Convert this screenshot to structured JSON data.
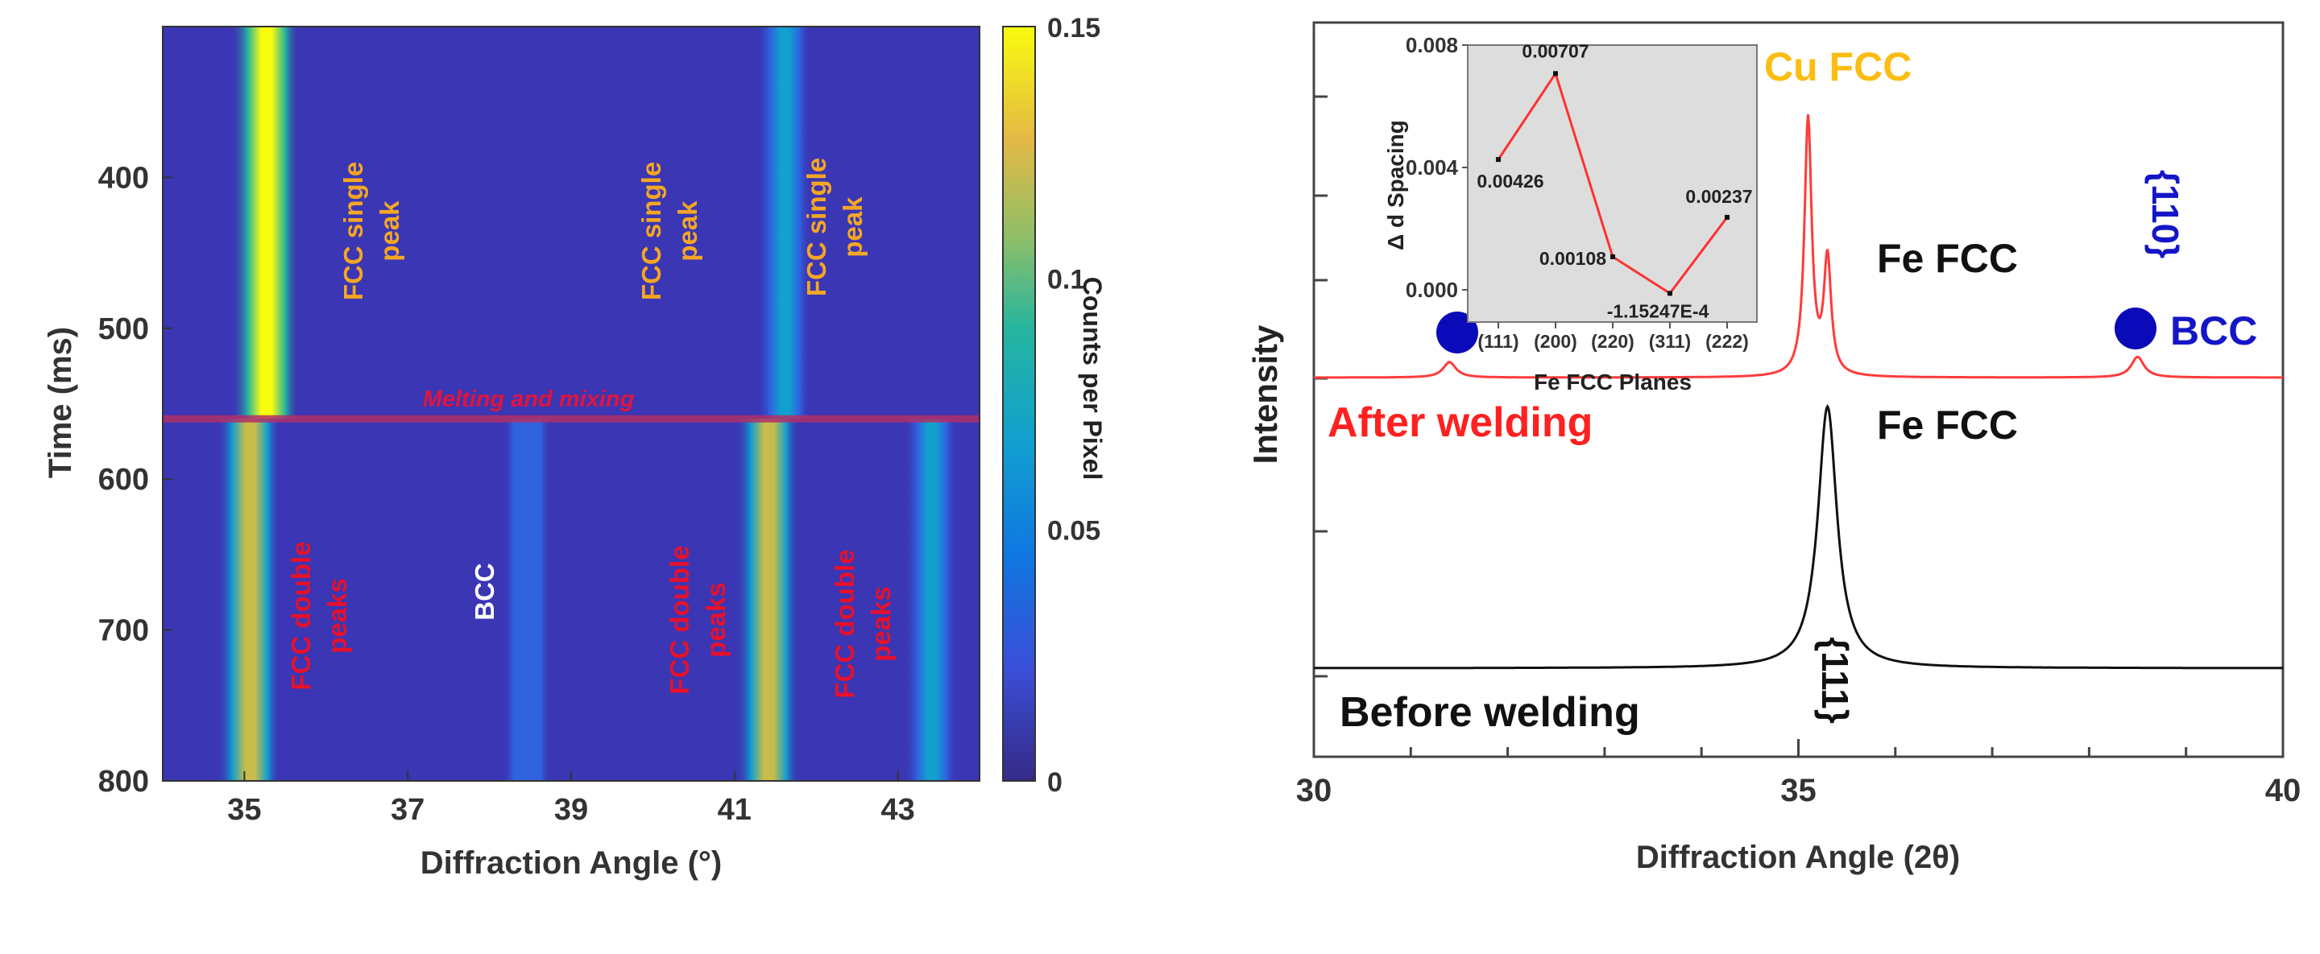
{
  "chart_data": [
    {
      "type": "heatmap",
      "xlabel": "Diffraction Angle (°)",
      "ylabel": "Time (ms)",
      "xlim": [
        34,
        44
      ],
      "ylim": [
        300,
        800
      ],
      "xticks": [
        "35",
        "37",
        "39",
        "41",
        "43"
      ],
      "yticks": [
        "400",
        "500",
        "600",
        "700",
        "800"
      ],
      "colorbar": {
        "label": "Counts per Pixel",
        "ticks": [
          "0.15",
          "0.1",
          "0.05",
          "0"
        ],
        "range": [
          0,
          0.15
        ]
      },
      "peaks": [
        {
          "angle": 35.25,
          "t0": 300,
          "t1": 560,
          "intensity": 0.15
        },
        {
          "angle": 35.05,
          "t0": 560,
          "t1": 800,
          "intensity": 0.12
        },
        {
          "angle": 41.6,
          "t0": 300,
          "t1": 560,
          "intensity": 0.06
        },
        {
          "angle": 41.4,
          "t0": 560,
          "t1": 800,
          "intensity": 0.12
        },
        {
          "angle": 43.4,
          "t0": 560,
          "t1": 800,
          "intensity": 0.06
        },
        {
          "angle": 38.45,
          "t0": 560,
          "t1": 800,
          "intensity": 0.03
        }
      ],
      "melt_line_time": 560,
      "annotations": {
        "melting": "Melting and mixing",
        "fcc_single_1": [
          "FCC single",
          "peak"
        ],
        "fcc_single_2": [
          "FCC single",
          "peak"
        ],
        "fcc_single_3": [
          "FCC single",
          "peak"
        ],
        "fcc_double_1": [
          "FCC double",
          "peaks"
        ],
        "fcc_double_2": [
          "FCC double",
          "peaks"
        ],
        "fcc_double_3": [
          "FCC double",
          "peaks"
        ],
        "bcc": "BCC"
      }
    },
    {
      "type": "line",
      "xlabel": "Diffraction Angle (2θ)",
      "ylabel": "Intensity",
      "xlim": [
        30,
        40
      ],
      "xticks": [
        "30",
        "35",
        "40"
      ],
      "series": [
        {
          "name": "After welding",
          "color": "#ff2a2a",
          "peaks": [
            {
              "x": 31.4,
              "h": 0.06
            },
            {
              "x": 35.1,
              "h": 1.0
            },
            {
              "x": 35.3,
              "h": 0.45
            },
            {
              "x": 38.5,
              "h": 0.08
            }
          ]
        },
        {
          "name": "Before welding",
          "color": "#111111",
          "peaks": [
            {
              "x": 35.3,
              "h": 1.0
            }
          ]
        }
      ],
      "labels": {
        "cu_fcc": "Cu FCC",
        "fe_fcc_after": "Fe FCC",
        "fe_fcc_before": "Fe FCC",
        "plane_110": "{110}",
        "bcc": "BCC",
        "plane_111": "{111}",
        "after": "After welding",
        "before": "Before welding"
      },
      "inset": {
        "type": "line",
        "xlabel": "Fe FCC Planes",
        "ylabel": "Δ d Spacing",
        "categories": [
          "(111)",
          "(200)",
          "(220)",
          "(311)",
          "(222)"
        ],
        "values": [
          0.00426,
          0.00707,
          0.00108,
          -0.000115247,
          0.00237
        ],
        "value_labels": [
          "0.00426",
          "0.00707",
          "0.00108",
          "-1.15247E-4",
          "0.00237"
        ],
        "yticks": [
          "0.008",
          "0.004",
          "0.000"
        ],
        "ylim": [
          -0.0015,
          0.008
        ]
      }
    }
  ]
}
